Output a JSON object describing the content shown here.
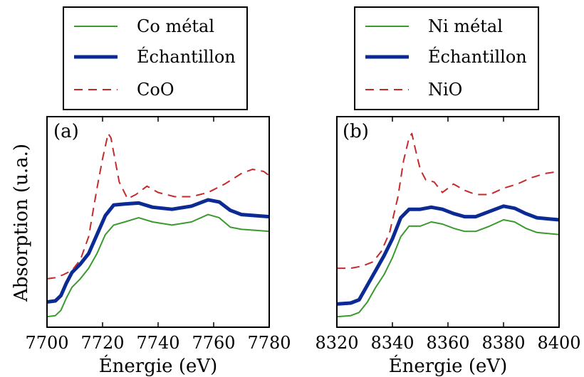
{
  "ylabel": "Absorption (u.a.)",
  "chart_data": [
    {
      "type": "line",
      "panel_label": "(a)",
      "xlabel": "Énergie (eV)",
      "ylabel": "Absorption (u.a.)",
      "xlim": [
        7700,
        7780
      ],
      "ylim": [
        0,
        1
      ],
      "xticks": [
        7700,
        7720,
        7740,
        7760,
        7780
      ],
      "legend": "above",
      "series": [
        {
          "name": "Co métal",
          "color": "#3a9a2e",
          "style": "solid",
          "width": 2,
          "x": [
            7700,
            7703,
            7705,
            7707,
            7709,
            7712,
            7715,
            7718,
            7721,
            7724,
            7728,
            7733,
            7738,
            7745,
            7752,
            7758,
            7762,
            7766,
            7770,
            7775,
            7780
          ],
          "y": [
            0.05,
            0.055,
            0.08,
            0.14,
            0.19,
            0.23,
            0.28,
            0.35,
            0.44,
            0.485,
            0.5,
            0.52,
            0.5,
            0.485,
            0.5,
            0.535,
            0.52,
            0.475,
            0.465,
            0.46,
            0.455
          ]
        },
        {
          "name": "Échantillon",
          "color": "#0b2a94",
          "style": "solid",
          "width": 5,
          "x": [
            7700,
            7703,
            7705,
            7707,
            7709,
            7712,
            7715,
            7718,
            7721,
            7724,
            7728,
            7733,
            7738,
            7745,
            7752,
            7758,
            7762,
            7766,
            7770,
            7775,
            7780
          ],
          "y": [
            0.12,
            0.125,
            0.15,
            0.21,
            0.26,
            0.3,
            0.35,
            0.44,
            0.53,
            0.58,
            0.585,
            0.59,
            0.57,
            0.56,
            0.575,
            0.605,
            0.595,
            0.555,
            0.535,
            0.53,
            0.525
          ]
        },
        {
          "name": "CoO",
          "color": "#c42a2a",
          "style": "dashed",
          "width": 2,
          "x": [
            7700,
            7703,
            7706,
            7709,
            7712,
            7715,
            7718,
            7720,
            7722,
            7723,
            7724,
            7726,
            7729,
            7732,
            7736,
            7740,
            7746,
            7752,
            7758,
            7764,
            7770,
            7774,
            7778,
            7780
          ],
          "y": [
            0.23,
            0.235,
            0.25,
            0.27,
            0.32,
            0.43,
            0.66,
            0.8,
            0.92,
            0.9,
            0.83,
            0.69,
            0.61,
            0.63,
            0.67,
            0.64,
            0.62,
            0.62,
            0.64,
            0.68,
            0.73,
            0.75,
            0.74,
            0.72
          ]
        }
      ]
    },
    {
      "type": "line",
      "panel_label": "(b)",
      "xlabel": "Énergie (eV)",
      "xlim": [
        8320,
        8400
      ],
      "ylim": [
        0,
        1
      ],
      "xticks": [
        8320,
        8340,
        8360,
        8380,
        8400
      ],
      "legend": "above",
      "series": [
        {
          "name": "Ni métal",
          "color": "#3a9a2e",
          "style": "solid",
          "width": 2,
          "x": [
            8320,
            8325,
            8328,
            8331,
            8334,
            8337,
            8340,
            8343,
            8346,
            8350,
            8354,
            8358,
            8362,
            8366,
            8370,
            8375,
            8380,
            8384,
            8388,
            8392,
            8396,
            8400
          ],
          "y": [
            0.05,
            0.055,
            0.07,
            0.12,
            0.19,
            0.25,
            0.33,
            0.43,
            0.48,
            0.48,
            0.5,
            0.49,
            0.47,
            0.455,
            0.455,
            0.48,
            0.51,
            0.5,
            0.47,
            0.45,
            0.445,
            0.44
          ]
        },
        {
          "name": "Échantillon",
          "color": "#0b2a94",
          "style": "solid",
          "width": 5,
          "x": [
            8320,
            8325,
            8328,
            8331,
            8334,
            8337,
            8340,
            8343,
            8346,
            8350,
            8354,
            8358,
            8362,
            8366,
            8370,
            8375,
            8380,
            8384,
            8388,
            8392,
            8396,
            8400
          ],
          "y": [
            0.11,
            0.115,
            0.13,
            0.2,
            0.27,
            0.34,
            0.42,
            0.52,
            0.56,
            0.56,
            0.57,
            0.56,
            0.54,
            0.525,
            0.525,
            0.55,
            0.575,
            0.565,
            0.54,
            0.52,
            0.515,
            0.51
          ]
        },
        {
          "name": "NiO",
          "color": "#c42a2a",
          "style": "dashed",
          "width": 2,
          "x": [
            8320,
            8325,
            8329,
            8333,
            8336,
            8339,
            8342,
            8344,
            8346,
            8347,
            8348,
            8350,
            8352,
            8355,
            8358,
            8362,
            8366,
            8370,
            8375,
            8380,
            8385,
            8390,
            8395,
            8400
          ],
          "y": [
            0.28,
            0.28,
            0.29,
            0.31,
            0.36,
            0.45,
            0.62,
            0.79,
            0.9,
            0.92,
            0.86,
            0.75,
            0.7,
            0.69,
            0.64,
            0.68,
            0.65,
            0.63,
            0.63,
            0.66,
            0.68,
            0.71,
            0.73,
            0.74
          ]
        }
      ]
    }
  ]
}
